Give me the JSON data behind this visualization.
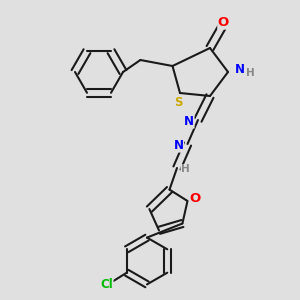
{
  "background_color": "#e0e0e0",
  "bond_color": "#1a1a1a",
  "atom_colors": {
    "O": "#ff0000",
    "N": "#0000ff",
    "S": "#ccaa00",
    "Cl": "#00bb00",
    "H": "#888888",
    "C": "#1a1a1a"
  },
  "lw": 1.5,
  "dbo": 0.012,
  "fs": 8.5,
  "fig_w": 3.0,
  "fig_h": 3.0,
  "dpi": 100
}
